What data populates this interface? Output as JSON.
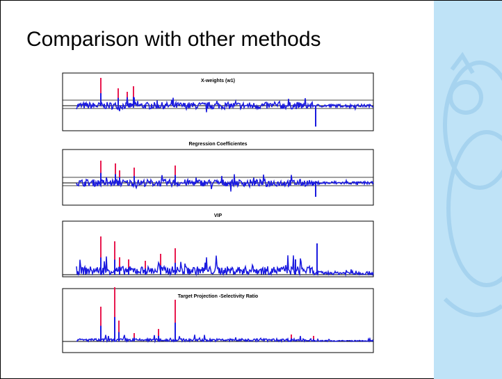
{
  "slide": {
    "title": "Comparison with other methods",
    "panels": [
      {
        "title": "X-weights (w1)"
      },
      {
        "title": "Regression Coefficientes"
      },
      {
        "title": "VIP"
      },
      {
        "title": "Target Projection -Selectivity Ratio"
      }
    ]
  }
}
